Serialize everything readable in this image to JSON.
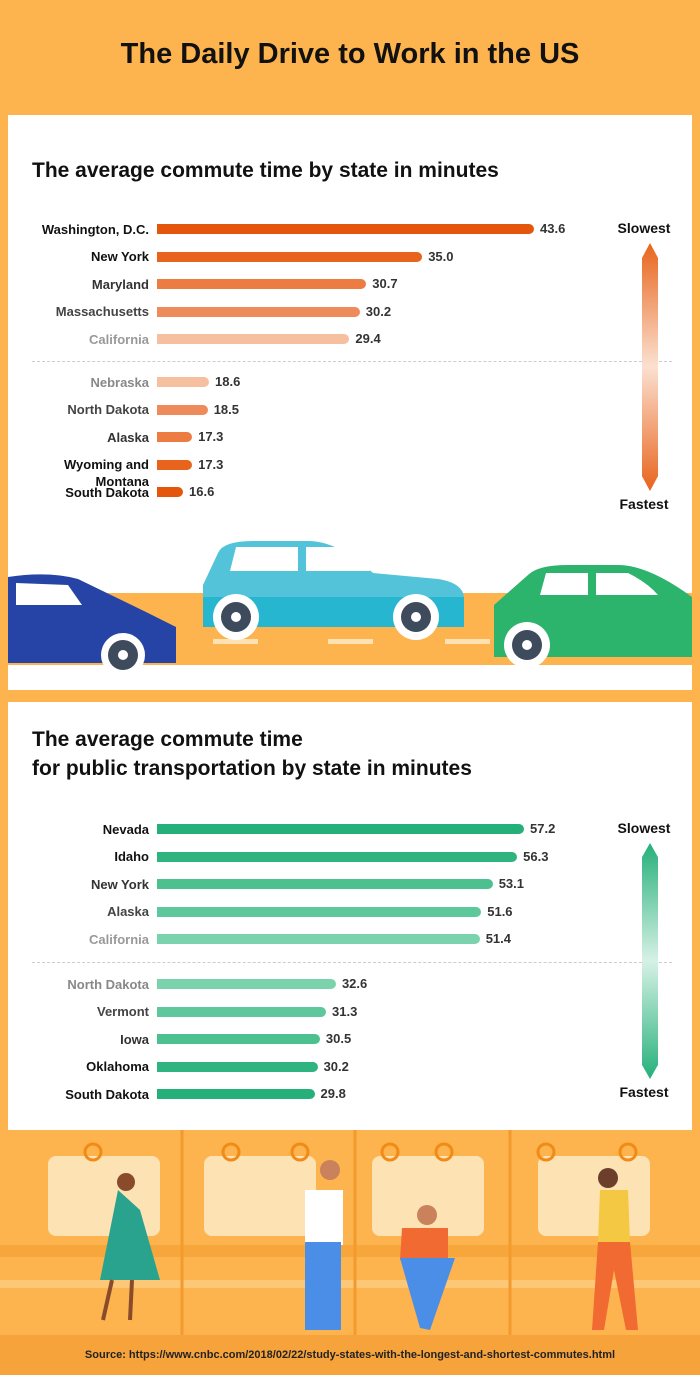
{
  "title": "The Daily Drive to Work in the US",
  "source": "Source: https://www.cnbc.com/2018/02/22/study-states-with-the-longest-and-shortest-commutes.html",
  "chart_data": [
    {
      "type": "bar",
      "title": [
        "The average commute time by state in minutes"
      ],
      "categories": [
        "Washington, D.C.",
        "New York",
        "Maryland",
        "Massachusetts",
        "California",
        "Nebraska",
        "North Dakota",
        "Alaska",
        "Wyoming and Montana",
        "South Dakota"
      ],
      "values": [
        43.6,
        35.0,
        30.7,
        30.2,
        29.4,
        18.6,
        18.5,
        17.3,
        17.3,
        16.6
      ],
      "value_labels": [
        "43.6",
        "35.0",
        "30.7",
        "30.2",
        "29.4",
        "18.6",
        "18.5",
        "17.3",
        "17.3",
        "16.6"
      ],
      "colors": [
        "#e4560b",
        "#e8641c",
        "#ed7c43",
        "#ef8a5a",
        "#f6bfa0",
        "#f6bfa0",
        "#ef8a5a",
        "#ed7c43",
        "#e8641c",
        "#e4560b"
      ],
      "label_colors": [
        "#111",
        "#111",
        "#333",
        "#444",
        "#999",
        "#888",
        "#444",
        "#333",
        "#111",
        "#111"
      ],
      "xlim": [
        14.6,
        44.6
      ],
      "legend_top": "Slowest",
      "legend_bottom": "Fastest",
      "legend_colors": [
        "#e8641c",
        "#fbe0d0"
      ]
    },
    {
      "type": "bar",
      "title": [
        "The average commute time",
        "for public transportation by state in minutes"
      ],
      "categories": [
        "Nevada",
        "Idaho",
        "New York",
        "Alaska",
        "California",
        "North Dakota",
        "Vermont",
        "Iowa",
        "Oklahoma",
        "South Dakota"
      ],
      "values": [
        57.2,
        56.3,
        53.1,
        51.6,
        51.4,
        32.6,
        31.3,
        30.5,
        30.2,
        29.8
      ],
      "colors": [
        "#25b07a",
        "#2fb47f",
        "#4cc08f",
        "#5ec79b",
        "#7ad3ac",
        "#7ad3ac",
        "#5ec79b",
        "#4cc08f",
        "#2fb47f",
        "#25b07a"
      ],
      "label_colors": [
        "#111",
        "#111",
        "#333",
        "#444",
        "#999",
        "#888",
        "#444",
        "#333",
        "#111",
        "#111"
      ],
      "xlim": [
        9.2,
        60.2
      ],
      "legend_top": "Slowest",
      "legend_bottom": "Fastest",
      "legend_colors": [
        "#25b07a",
        "#d6f1e5"
      ]
    }
  ]
}
